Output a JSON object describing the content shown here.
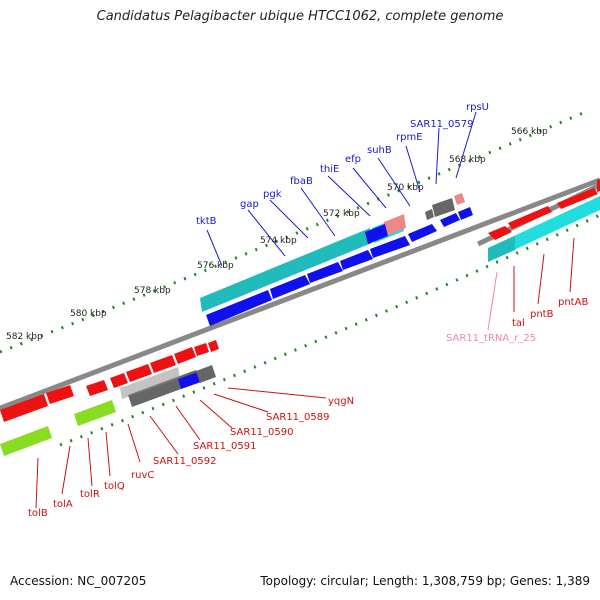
{
  "title": "Candidatus Pelagibacter ubique HTCC1062, complete genome",
  "footer": {
    "accession": "Accession: NC_007205",
    "topology": "Topology: circular; Length: 1,308,759 bp; Genes: 1,389"
  },
  "colors": {
    "backbone": "#777777",
    "tick": "#227722",
    "cds_plus": "#1010ee",
    "cds_minus": "#ee1111",
    "cds_plus_label": "#1a1acc",
    "cds_minus_label": "#cc1111",
    "trna_label": "#ee88aa",
    "teal": "#22bbbb",
    "cyan": "#22dddd",
    "lime": "#88dd22",
    "gray": "#666666",
    "pink": "#ee8888"
  },
  "scale_labels": [
    "566 kbp",
    "568 kbp",
    "570 kbp",
    "572 kbp",
    "574 kbp",
    "576 kbp",
    "578 kbp",
    "580 kbp",
    "582 kbp"
  ],
  "plus_strand_genes": [
    "rpsU",
    "SAR11_0579",
    "rpmE",
    "suhB",
    "efp",
    "thiE",
    "fbaB",
    "pgk",
    "gap",
    "tktB"
  ],
  "minus_strand_genes": [
    "yqgN",
    "SAR11_0589",
    "SAR11_0590",
    "SAR11_0591",
    "SAR11_0592",
    "ruvC",
    "tolQ",
    "tolR",
    "tolA",
    "tolB"
  ],
  "upper_segment_minus_genes": [
    "tal",
    "pntB",
    "pntAB"
  ],
  "trna_genes": [
    "SAR11_tRNA_r_25"
  ]
}
